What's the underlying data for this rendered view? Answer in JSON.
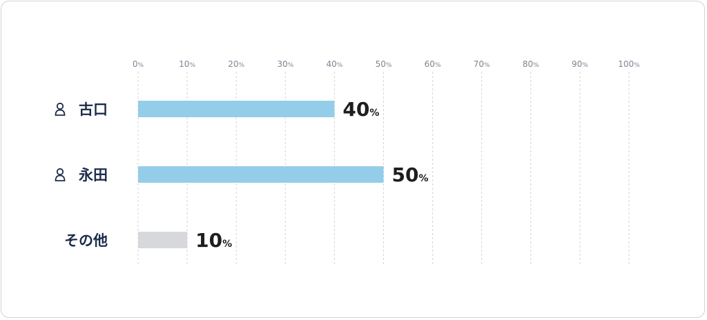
{
  "chart_data": {
    "type": "bar",
    "orientation": "horizontal",
    "categories": [
      "古口",
      "永田",
      "その他"
    ],
    "category_has_person_icon": [
      true,
      true,
      false
    ],
    "values": [
      40,
      50,
      10
    ],
    "value_unit": "%",
    "bar_colors": [
      "#94cde9",
      "#94cde9",
      "#d6d8dc"
    ],
    "xlim": [
      0,
      100
    ],
    "x_ticks": [
      0,
      10,
      20,
      30,
      40,
      50,
      60,
      70,
      80,
      90,
      100
    ],
    "tick_unit": "%",
    "grid": "vertical dashed",
    "title": "",
    "xlabel": "",
    "ylabel": ""
  },
  "colors": {
    "label_text": "#1c2b4a",
    "value_text": "#1e1e1e",
    "tick_text": "#7b8594",
    "grid": "#cfd3d8",
    "card_border": "#cfd3d8"
  },
  "icons": {
    "person": "person-icon"
  }
}
